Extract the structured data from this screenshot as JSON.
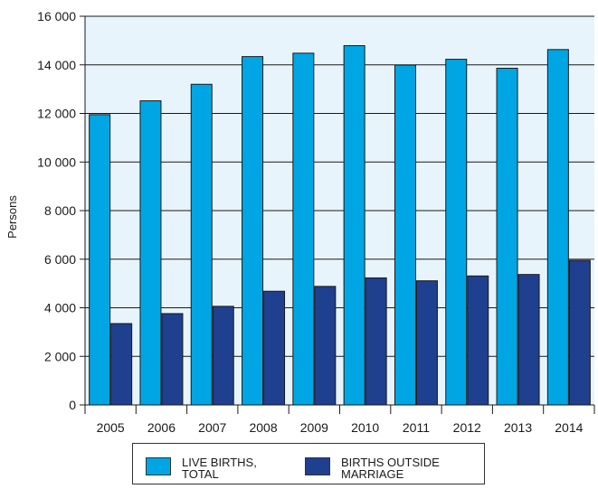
{
  "chart_data": {
    "type": "bar",
    "title": "",
    "xlabel": "",
    "ylabel": "Persons",
    "ylim": [
      0,
      16000
    ],
    "yticks": [
      "0",
      "2 000",
      "4 000",
      "6 000",
      "8 000",
      "10 000",
      "12 000",
      "14 000",
      "16 000"
    ],
    "grid": true,
    "legend_position": "bottom",
    "categories": [
      "2005",
      "2006",
      "2007",
      "2008",
      "2009",
      "2010",
      "2011",
      "2012",
      "2013",
      "2014"
    ],
    "series": [
      {
        "name": "LIVE BIRTHS,\nTOTAL",
        "color": "#00a6e4",
        "values": [
          11950,
          12520,
          13200,
          14340,
          14480,
          14790,
          13990,
          14230,
          13860,
          14630
        ]
      },
      {
        "name": "BIRTHS OUTSIDE\nMARRIAGE",
        "color": "#1f3f8f",
        "values": [
          3350,
          3760,
          4060,
          4680,
          4880,
          5230,
          5110,
          5310,
          5370,
          5950
        ]
      }
    ],
    "background_color": "#e8f4fb"
  }
}
